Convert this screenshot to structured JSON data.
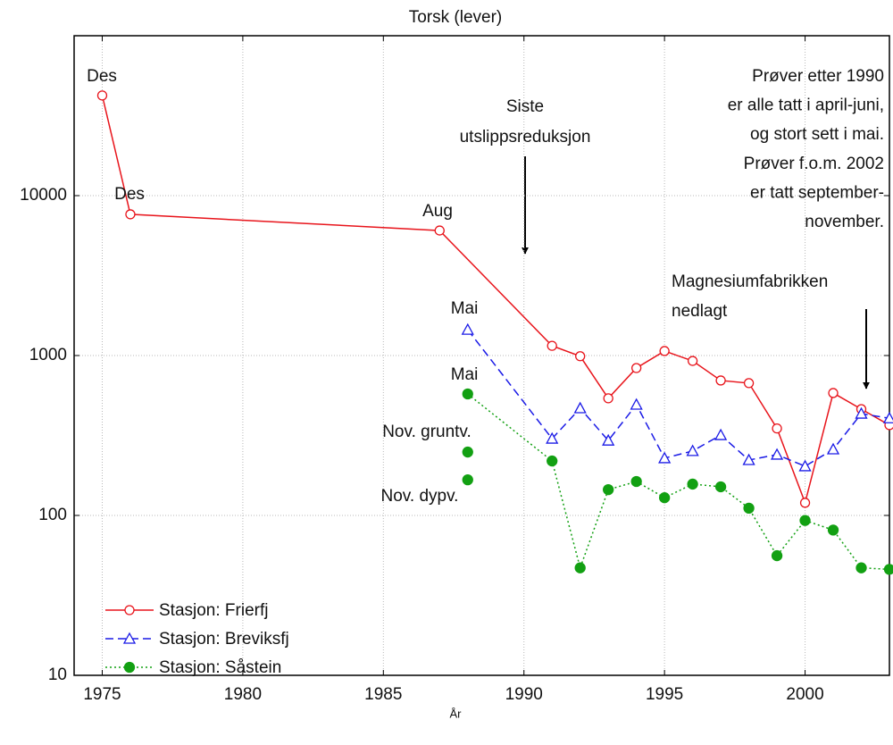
{
  "chart_data": {
    "type": "line",
    "title": "Torsk (lever)",
    "x_label": "År",
    "log_y": true,
    "grid": true,
    "xlim": [
      1974,
      2003
    ],
    "ylim": [
      10,
      100000
    ],
    "xticks": [
      1975,
      1980,
      1985,
      1990,
      1995,
      2000
    ],
    "yticks": [
      10,
      100,
      1000,
      10000
    ],
    "legend": "lower left",
    "series": [
      {
        "name": "Stasjon: Frierfj",
        "color": "#e8141b",
        "marker": "open-circle",
        "line": "solid",
        "x": [
          1975,
          1976,
          1987,
          1991,
          1992,
          1993,
          1994,
          1995,
          1996,
          1997,
          1998,
          1999,
          2000,
          2001,
          2002,
          2003
        ],
        "values": [
          42300,
          7640,
          6050,
          1150,
          990,
          540,
          835,
          1067,
          925,
          698,
          672,
          350,
          120,
          583,
          462,
          367
        ]
      },
      {
        "name": "Stasjon: Breviksfj",
        "color": "#1a1ae6",
        "marker": "open-triangle",
        "line": "dashed",
        "x": [
          1988,
          1991,
          1992,
          1993,
          1994,
          1995,
          1996,
          1997,
          1998,
          1999,
          2000,
          2001,
          2002,
          2003
        ],
        "values": [
          1450,
          302,
          468,
          294,
          493,
          228,
          253,
          318,
          222,
          240,
          203,
          259,
          433,
          405
        ]
      },
      {
        "name": "Stasjon: Såstein",
        "color": "#12a012",
        "marker": "filled-circle",
        "line": "dotted",
        "x": [
          1988,
          1991,
          1992,
          1993,
          1994,
          1995,
          1996,
          1997,
          1998,
          1999,
          2000,
          2001,
          2002,
          2003
        ],
        "values": [
          575,
          219,
          47,
          145,
          163,
          129,
          157,
          151,
          111,
          56,
          93,
          81,
          47,
          46
        ]
      }
    ],
    "extra_points": {
      "color": "#12a012",
      "x": [
        1988,
        1988
      ],
      "values": [
        249,
        167
      ]
    },
    "annotations": [
      "Des",
      "Des",
      "Aug",
      "Mai",
      "Mai",
      "Nov. gruntv.",
      "Nov. dypv."
    ],
    "arrow_notes": [
      {
        "lines": [
          "Siste",
          "utslippsreduksjon"
        ]
      },
      {
        "lines": [
          "Magnesiumfabrikken",
          "nedlagt"
        ]
      }
    ],
    "note": [
      "Prøver etter 1990",
      "er alle tatt i april-juni,",
      "og stort sett i mai.",
      "Prøver f.o.m. 2002",
      "er tatt september-",
      "november."
    ]
  }
}
